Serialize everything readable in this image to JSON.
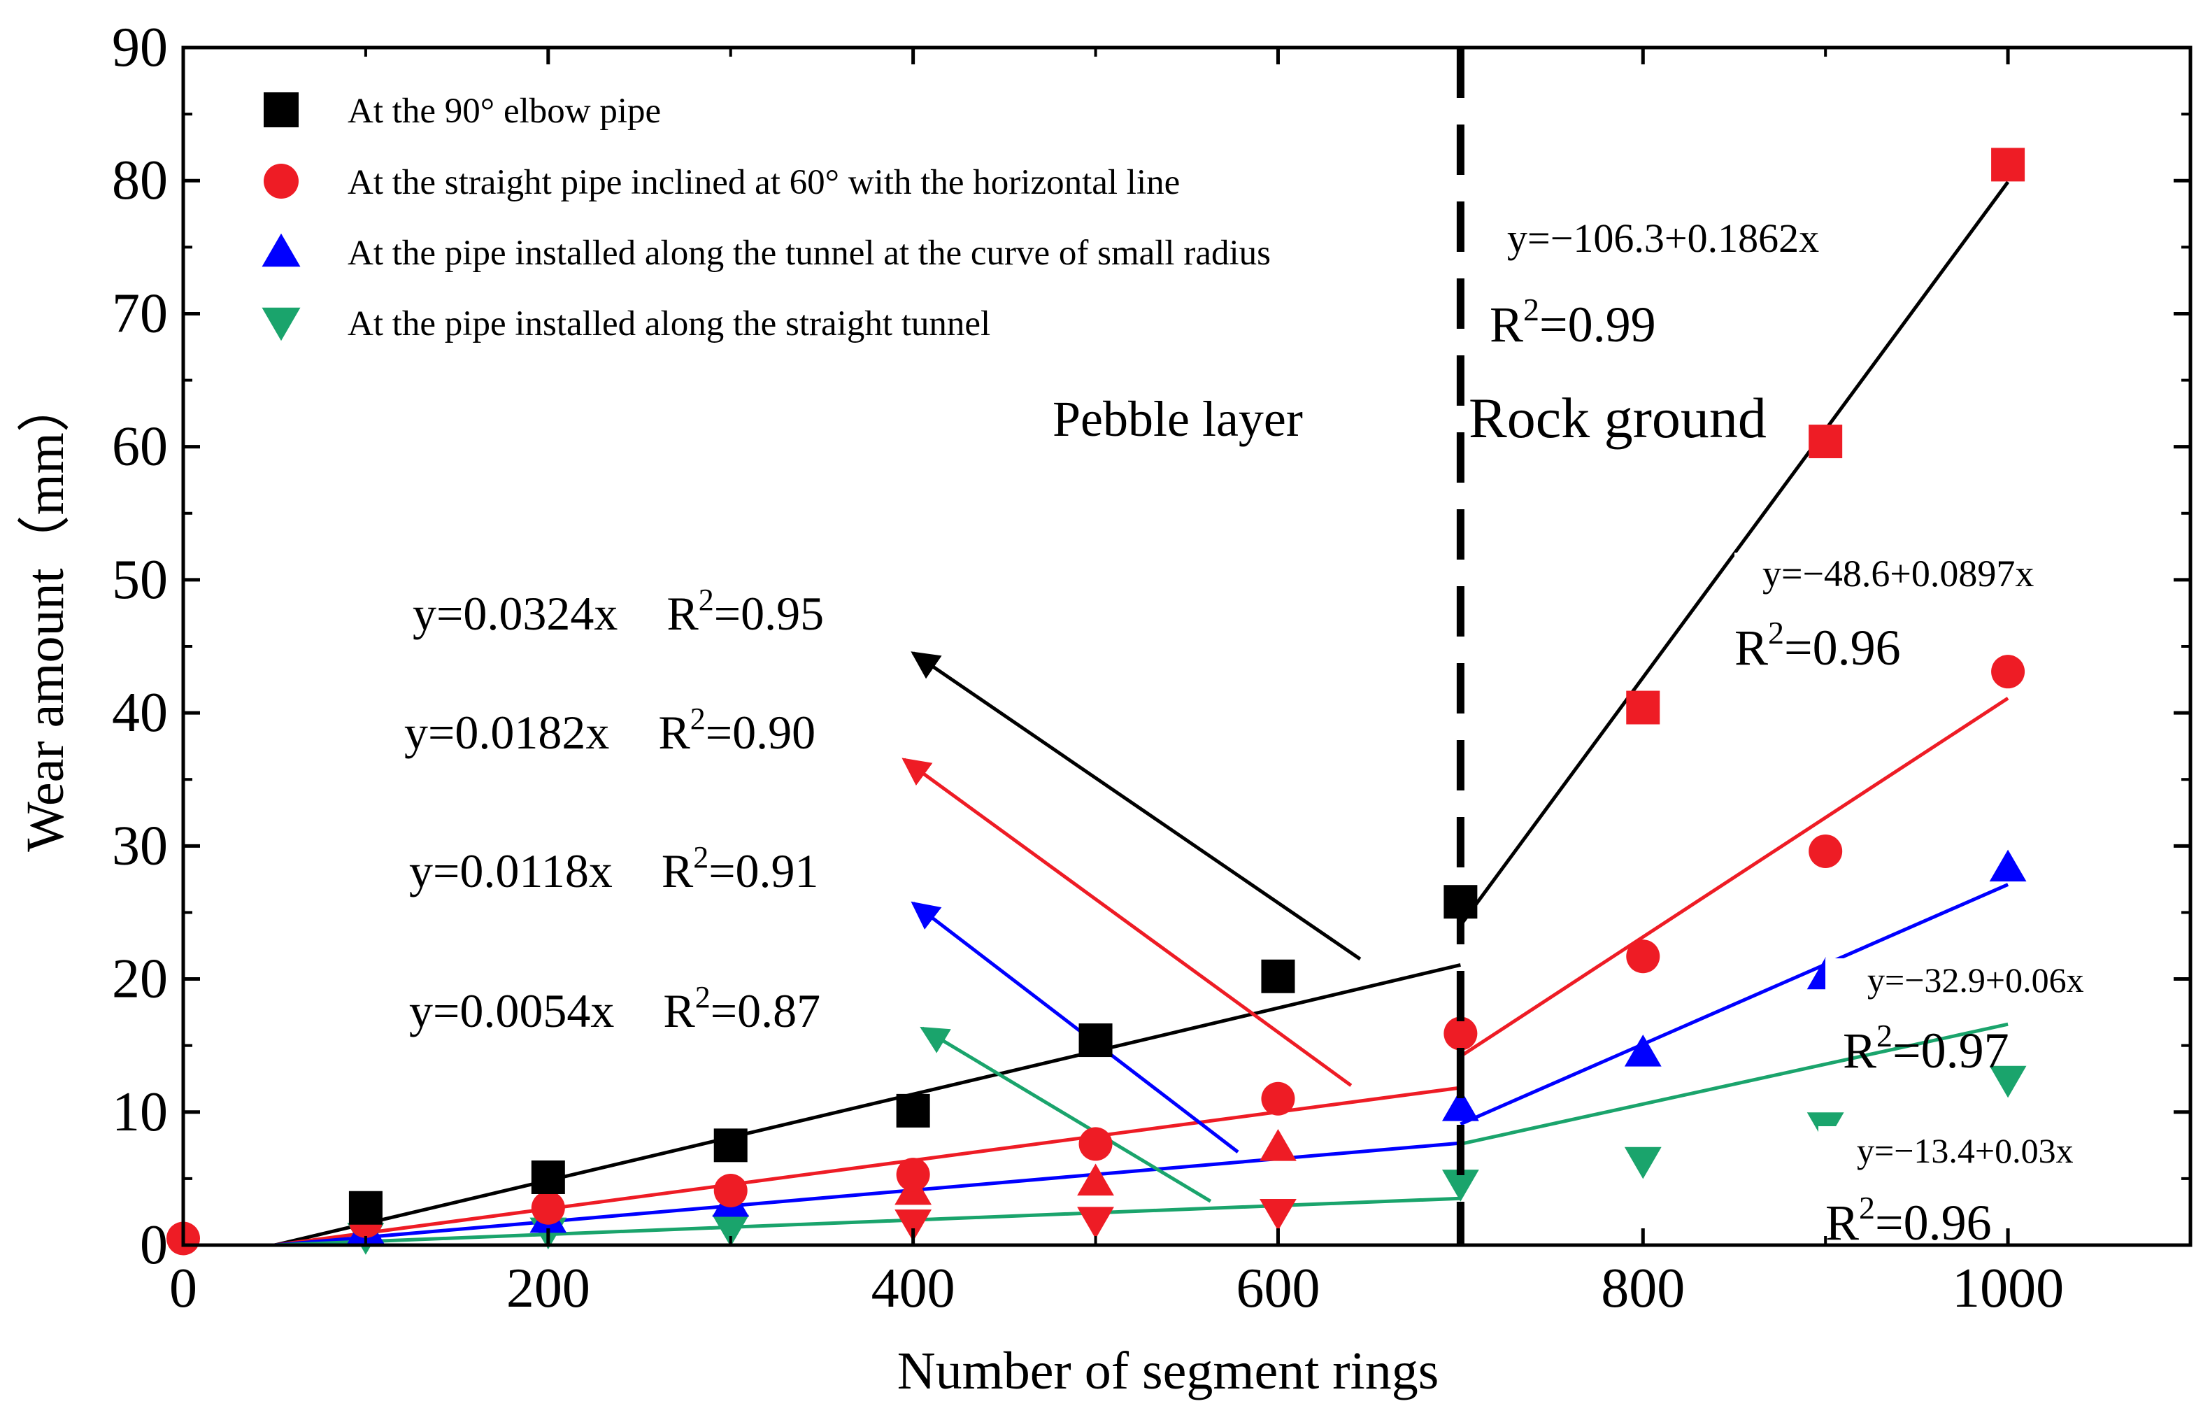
{
  "chart_data": {
    "type": "scatter",
    "title": "",
    "xlabel": "Number of segment rings",
    "ylabel": "Wear amount（mm）",
    "xlim": [
      0,
      1100
    ],
    "ylim": [
      0,
      90
    ],
    "x_ticks": [
      0,
      200,
      400,
      600,
      800,
      1000
    ],
    "x_minor_ticks": [
      100,
      300,
      500,
      700,
      900
    ],
    "y_ticks": [
      0,
      10,
      20,
      30,
      40,
      50,
      60,
      70,
      80,
      90
    ],
    "y_minor_ticks": [
      5,
      15,
      25,
      35,
      45,
      55,
      65,
      75,
      85
    ],
    "x_tick_labels": [
      "0",
      "200",
      "400",
      "600",
      "800",
      "1000"
    ],
    "y_tick_labels": [
      "0",
      "10",
      "20",
      "30",
      "40",
      "50",
      "60",
      "70",
      "80",
      "90"
    ],
    "legend_position": "top-left",
    "divider": {
      "x": 700
    },
    "region_labels": [
      "Pebble layer",
      "Rock ground"
    ],
    "series": [
      {
        "name": "At the 90° elbow pipe",
        "marker": "square",
        "color": "#000000",
        "rock_color": "#ee1c25",
        "x": [
          100,
          200,
          300,
          400,
          500,
          600,
          700,
          800,
          900,
          1000
        ],
        "y": [
          2.8,
          5.1,
          7.5,
          10.1,
          15.4,
          20.2,
          25.8,
          40.4,
          60.4,
          81.2
        ],
        "fits": [
          {
            "x0": 50,
            "x1": 700,
            "slope": 0.0324,
            "intercept": -1.62
          },
          {
            "x0": 700,
            "x1": 1000,
            "slope": 0.1862,
            "intercept": -106.3
          }
        ]
      },
      {
        "name": "At the straight pipe inclined at 60° with the horizontal line",
        "marker": "circle",
        "color": "#ee1c25",
        "x": [
          0,
          100,
          200,
          300,
          400,
          500,
          600,
          700,
          800,
          900,
          1000
        ],
        "y": [
          0.5,
          1.8,
          2.8,
          4.1,
          5.3,
          7.6,
          11.0,
          15.9,
          21.7,
          29.6,
          43.1
        ],
        "fits": [
          {
            "x0": 50,
            "x1": 700,
            "slope": 0.0182,
            "intercept": -0.91
          },
          {
            "x0": 700,
            "x1": 1000,
            "slope": 0.0897,
            "intercept": -48.6
          }
        ]
      },
      {
        "name": "At the pipe installed along the tunnel at the curve of small radius",
        "marker": "triangle-up",
        "color": "#0000ff",
        "rock_color": "#0000ff",
        "pebble_color": "#ee1c25",
        "x": [
          100,
          200,
          300,
          400,
          500,
          600,
          700,
          800,
          900,
          1000
        ],
        "y": [
          1.2,
          2.0,
          3.2,
          4.1,
          4.8,
          7.4,
          10.4,
          14.5,
          20.3,
          28.4
        ],
        "fits": [
          {
            "x0": 50,
            "x1": 700,
            "slope": 0.0118,
            "intercept": -0.59
          },
          {
            "x0": 700,
            "x1": 1000,
            "slope": 0.06,
            "intercept": -32.9
          }
        ]
      },
      {
        "name": "At the pipe installed along the straight tunnel",
        "marker": "triangle-down",
        "color": "#1aa46c",
        "rock_color": "#1aa46c",
        "pebble_color": "#ee1c25",
        "x": [
          100,
          200,
          300,
          400,
          500,
          600,
          700,
          800,
          900,
          1000
        ],
        "y": [
          0.6,
          1.0,
          1.2,
          1.6,
          1.8,
          2.4,
          4.6,
          6.3,
          8.9,
          12.4
        ],
        "fits": [
          {
            "x0": 50,
            "x1": 700,
            "slope": 0.0054,
            "intercept": -0.27
          },
          {
            "x0": 700,
            "x1": 1000,
            "slope": 0.03,
            "intercept": -13.4
          }
        ]
      }
    ],
    "annotations": [
      {
        "y_text": "y=0.0324x",
        "r_base": "R",
        "r_sup": "2",
        "r_val": "=0.95",
        "color": "#000000",
        "arrow_from": [
          645,
          21.5
        ],
        "arrow_to": [
          400,
          44.5
        ]
      },
      {
        "y_text": "y=0.0182x",
        "r_base": "R",
        "r_sup": "2",
        "r_val": "=0.90",
        "color": "#ee1c25",
        "arrow_from": [
          640,
          12
        ],
        "arrow_to": [
          395,
          36.5
        ]
      },
      {
        "y_text": "y=0.0118x",
        "r_base": "R",
        "r_sup": "2",
        "r_val": "=0.91",
        "color": "#0000ff",
        "arrow_from": [
          578,
          7
        ],
        "arrow_to": [
          400,
          25.7
        ]
      },
      {
        "y_text": "y=0.0054x",
        "r_base": "R",
        "r_sup": "2",
        "r_val": "=0.87",
        "color": "#1aa46c",
        "arrow_from": [
          563,
          3.3
        ],
        "arrow_to": [
          405,
          16.3
        ]
      }
    ],
    "rock_fit_labels": [
      {
        "eq": "y=−106.3+0.1862x",
        "r_base": "R",
        "r_sup": "2",
        "r_val": "=0.99"
      },
      {
        "eq": "y=−48.6+0.0897x",
        "r_base": "R",
        "r_sup": "2",
        "r_val": "=0.96"
      },
      {
        "eq": "y=−32.9+0.06x",
        "r_base": "R",
        "r_sup": "2",
        "r_val": "=0.97"
      },
      {
        "eq": "y=−13.4+0.03x",
        "r_base": "R",
        "r_sup": "2",
        "r_val": "=0.96"
      }
    ]
  }
}
